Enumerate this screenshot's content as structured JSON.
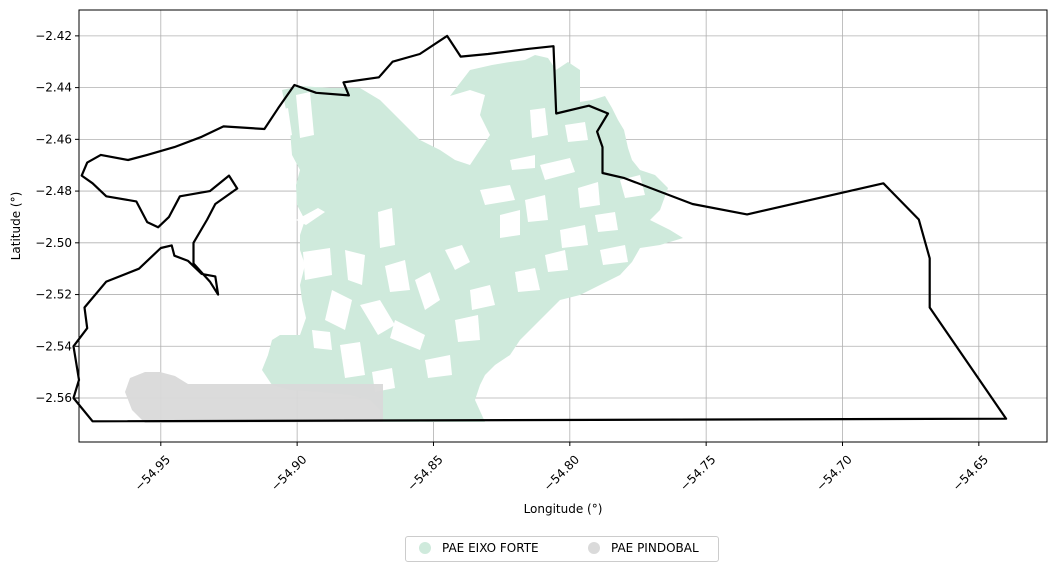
{
  "map": {
    "xlabel": "Longitude (°)",
    "ylabel": "Latitude (°)",
    "xlim": [
      -54.98,
      -54.625
    ],
    "ylim": [
      -2.577,
      -2.41
    ],
    "grid": true,
    "x_ticks": [
      "−54.95",
      "−54.90",
      "−54.85",
      "−54.80",
      "−54.75",
      "−54.70",
      "−54.65"
    ],
    "x_tick_values": [
      -54.95,
      -54.9,
      -54.85,
      -54.8,
      -54.75,
      -54.7,
      -54.65
    ],
    "y_ticks": [
      "−2.42",
      "−2.44",
      "−2.46",
      "−2.48",
      "−2.50",
      "−2.52",
      "−2.54",
      "−2.56"
    ],
    "y_tick_values": [
      -2.42,
      -2.44,
      -2.46,
      -2.48,
      -2.5,
      -2.52,
      -2.54,
      -2.56
    ],
    "x_tick_rotation_deg": 45,
    "colors": {
      "pae_eixo_forte": "#cfeadc",
      "pae_pindobal": "#dadada",
      "boundary": "#000000",
      "grid": "#b0b0b0"
    }
  },
  "legend": {
    "placement": "bottom-center",
    "items": [
      {
        "label": "PAE EIXO FORTE",
        "color": "#cfeadc"
      },
      {
        "label": "PAE PINDOBAL",
        "color": "#dadada"
      }
    ]
  },
  "chart_data": {
    "type": "map",
    "xlabel": "Longitude (°)",
    "ylabel": "Latitude (°)",
    "xlim": [
      -54.98,
      -54.625
    ],
    "ylim": [
      -2.577,
      -2.41
    ],
    "grid": true,
    "layers": [
      {
        "name": "PAE EIXO FORTE",
        "color": "#cfeadc",
        "type": "polygon-fill"
      },
      {
        "name": "PAE PINDOBAL",
        "color": "#dadada",
        "type": "polygon-fill"
      },
      {
        "name": "boundary",
        "color": "#000000",
        "type": "outline"
      }
    ],
    "boundary_outline": [
      [
        -54.975,
        -2.569
      ],
      [
        -54.982,
        -2.56
      ],
      [
        -54.98,
        -2.553
      ],
      [
        -54.982,
        -2.54
      ],
      [
        -54.977,
        -2.533
      ],
      [
        -54.978,
        -2.525
      ],
      [
        -54.97,
        -2.515
      ],
      [
        -54.958,
        -2.51
      ],
      [
        -54.95,
        -2.502
      ],
      [
        -54.946,
        -2.501
      ],
      [
        -54.945,
        -2.505
      ],
      [
        -54.94,
        -2.507
      ],
      [
        -54.935,
        -2.512
      ],
      [
        -54.93,
        -2.513
      ],
      [
        -54.929,
        -2.52
      ],
      [
        -54.932,
        -2.515
      ],
      [
        -54.938,
        -2.508
      ],
      [
        -54.938,
        -2.5
      ],
      [
        -54.933,
        -2.491
      ],
      [
        -54.93,
        -2.485
      ],
      [
        -54.922,
        -2.479
      ],
      [
        -54.925,
        -2.474
      ],
      [
        -54.932,
        -2.48
      ],
      [
        -54.943,
        -2.482
      ],
      [
        -54.947,
        -2.49
      ],
      [
        -54.951,
        -2.494
      ],
      [
        -54.955,
        -2.492
      ],
      [
        -54.959,
        -2.484
      ],
      [
        -54.97,
        -2.482
      ],
      [
        -54.975,
        -2.477
      ],
      [
        -54.979,
        -2.474
      ],
      [
        -54.977,
        -2.469
      ],
      [
        -54.972,
        -2.466
      ],
      [
        -54.962,
        -2.468
      ],
      [
        -54.955,
        -2.466
      ],
      [
        -54.945,
        -2.463
      ],
      [
        -54.935,
        -2.459
      ],
      [
        -54.927,
        -2.455
      ],
      [
        -54.912,
        -2.456
      ],
      [
        -54.907,
        -2.448
      ],
      [
        -54.901,
        -2.439
      ],
      [
        -54.893,
        -2.442
      ],
      [
        -54.881,
        -2.443
      ],
      [
        -54.883,
        -2.438
      ],
      [
        -54.87,
        -2.436
      ],
      [
        -54.865,
        -2.43
      ],
      [
        -54.855,
        -2.427
      ],
      [
        -54.845,
        -2.42
      ],
      [
        -54.84,
        -2.428
      ],
      [
        -54.83,
        -2.427
      ],
      [
        -54.815,
        -2.425
      ],
      [
        -54.806,
        -2.424
      ],
      [
        -54.805,
        -2.45
      ],
      [
        -54.793,
        -2.447
      ],
      [
        -54.786,
        -2.45
      ],
      [
        -54.79,
        -2.457
      ],
      [
        -54.788,
        -2.463
      ],
      [
        -54.788,
        -2.473
      ],
      [
        -54.78,
        -2.475
      ],
      [
        -54.755,
        -2.485
      ],
      [
        -54.735,
        -2.489
      ],
      [
        -54.685,
        -2.477
      ],
      [
        -54.672,
        -2.491
      ],
      [
        -54.668,
        -2.506
      ],
      [
        -54.668,
        -2.525
      ],
      [
        -54.64,
        -2.568
      ],
      [
        -54.975,
        -2.569
      ]
    ]
  }
}
